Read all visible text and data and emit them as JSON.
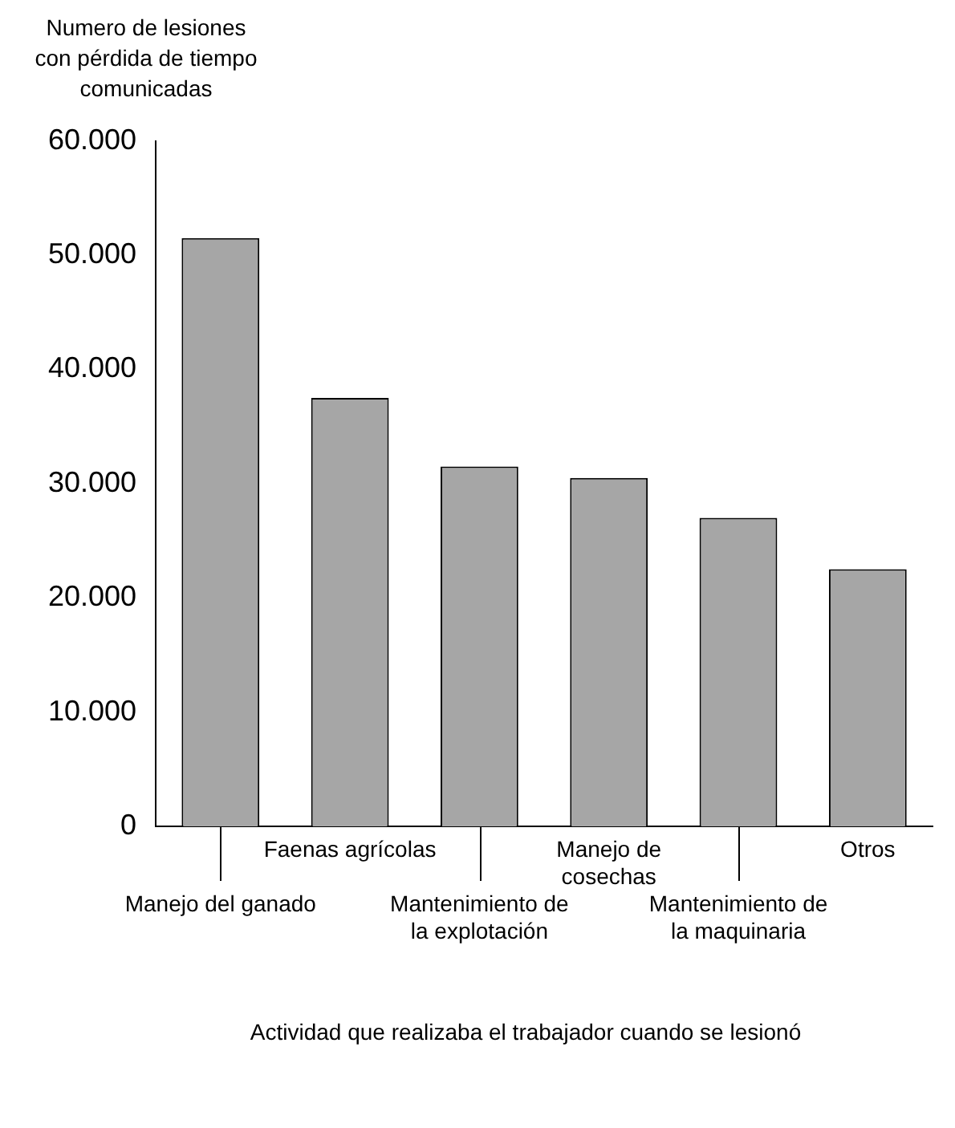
{
  "chart_data": {
    "type": "bar",
    "ylabel": "Numero de lesiones con pérdida de tiempo comunicadas",
    "xlabel": "Actividad que realizaba el trabajador cuando se lesionó",
    "categories": [
      "Manejo del ganado",
      "Faenas agrícolas",
      "Mantenimiento de la explotación",
      "Manejo de cosechas",
      "Mantenimiento de la maquinaria",
      "Otros"
    ],
    "values": [
      51500,
      37500,
      31500,
      30500,
      27000,
      22500
    ],
    "color": "#a6a6a6",
    "ylim": [
      0,
      60000
    ],
    "yticks": [
      {
        "value": 0,
        "label": "0"
      },
      {
        "value": 10000,
        "label": "10.000"
      },
      {
        "value": 20000,
        "label": "20.000"
      },
      {
        "value": 30000,
        "label": "30.000"
      },
      {
        "value": 40000,
        "label": "40.000"
      },
      {
        "value": 50000,
        "label": "50.000"
      },
      {
        "value": 60000,
        "label": "60.000"
      }
    ],
    "grid": false
  }
}
